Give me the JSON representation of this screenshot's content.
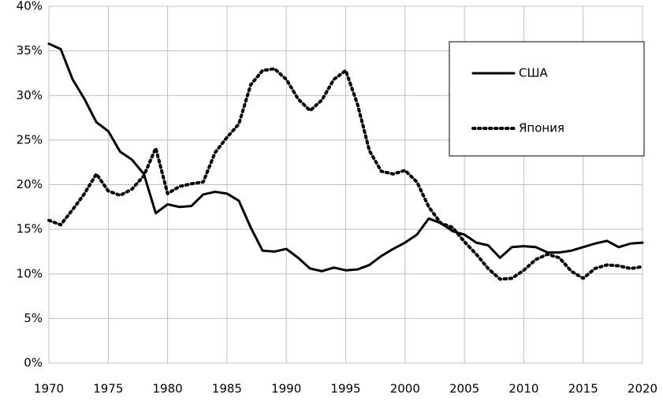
{
  "chart_data": {
    "type": "line",
    "x": [
      1970,
      1971,
      1972,
      1973,
      1974,
      1975,
      1976,
      1977,
      1978,
      1979,
      1980,
      1981,
      1982,
      1983,
      1984,
      1985,
      1986,
      1987,
      1988,
      1989,
      1990,
      1991,
      1992,
      1993,
      1994,
      1995,
      1996,
      1997,
      1998,
      1999,
      2000,
      2001,
      2002,
      2003,
      2004,
      2005,
      2006,
      2007,
      2008,
      2009,
      2010,
      2011,
      2012,
      2013,
      2014,
      2015,
      2016,
      2017,
      2018,
      2019,
      2020
    ],
    "series": [
      {
        "name": "США",
        "color": "#000000",
        "linestyle": "solid",
        "values": [
          35.8,
          35.2,
          31.8,
          29.6,
          27.0,
          26.0,
          23.7,
          22.8,
          21.2,
          16.8,
          17.8,
          17.5,
          17.6,
          18.9,
          19.2,
          19.0,
          18.2,
          15.2,
          12.6,
          12.5,
          12.8,
          11.8,
          10.6,
          10.3,
          10.7,
          10.4,
          10.5,
          11.0,
          12.0,
          12.8,
          13.5,
          14.4,
          16.2,
          15.7,
          14.8,
          14.4,
          13.5,
          13.2,
          11.8,
          13.0,
          13.1,
          13.0,
          12.4,
          12.4,
          12.6,
          13.0,
          13.4,
          13.7,
          13.0,
          13.4,
          13.5
        ]
      },
      {
        "name": "Япония",
        "color": "#000000",
        "linestyle": "dotted",
        "values": [
          16.0,
          15.5,
          17.2,
          19.0,
          21.2,
          19.3,
          18.8,
          19.5,
          21.0,
          24.1,
          19.0,
          19.8,
          20.1,
          20.3,
          23.6,
          25.3,
          26.8,
          31.2,
          32.8,
          33.0,
          31.8,
          29.6,
          28.3,
          29.5,
          31.8,
          32.8,
          29.0,
          23.8,
          21.5,
          21.2,
          21.6,
          20.3,
          17.5,
          15.7,
          15.2,
          13.6,
          12.2,
          10.6,
          9.4,
          9.5,
          10.4,
          11.6,
          12.2,
          11.8,
          10.3,
          9.5,
          10.6,
          11.0,
          10.9,
          10.6,
          10.8
        ]
      }
    ],
    "xlim": [
      1970,
      2020
    ],
    "xticks": [
      1970,
      1975,
      1980,
      1985,
      1990,
      1995,
      2000,
      2005,
      2010,
      2015,
      2020
    ],
    "ylim": [
      0,
      40
    ],
    "yticks": [
      {
        "value": 0,
        "label": "0%"
      },
      {
        "value": 5,
        "label": "5%"
      },
      {
        "value": 10,
        "label": "10%"
      },
      {
        "value": 15,
        "label": "15%"
      },
      {
        "value": 20,
        "label": "20%"
      },
      {
        "value": 25,
        "label": "25%"
      },
      {
        "value": 30,
        "label": "30%"
      },
      {
        "value": 35,
        "label": "35%"
      },
      {
        "value": 40,
        "label": "40%"
      }
    ],
    "grid": true,
    "legend": "upper-right"
  }
}
